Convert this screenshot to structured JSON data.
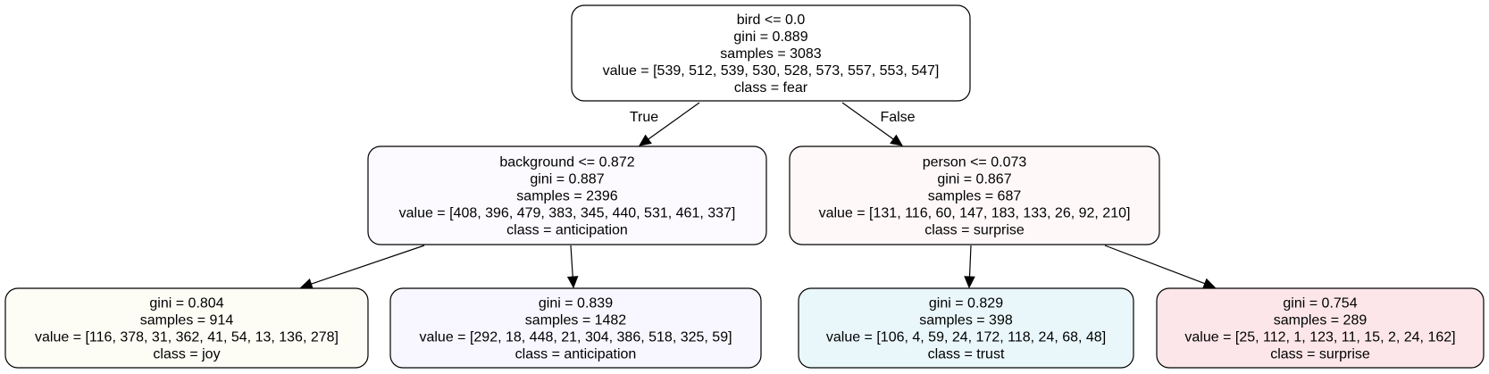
{
  "nodes": [
    {
      "id": "root",
      "fill": "#ffffff",
      "lines": [
        "bird <= 0.0",
        "gini = 0.889",
        "samples = 3083",
        "value = [539, 512, 539, 530, 528, 573, 557, 553, 547]",
        "class = fear"
      ]
    },
    {
      "id": "n1",
      "fill": "#fcfaff",
      "lines": [
        "background <= 0.872",
        "gini = 0.887",
        "samples = 2396",
        "value = [408, 396, 479, 383, 345, 440, 531, 461, 337]",
        "class = anticipation"
      ]
    },
    {
      "id": "n2",
      "fill": "#fff8f9",
      "lines": [
        "person <= 0.073",
        "gini = 0.867",
        "samples = 687",
        "value = [131, 116, 60, 147, 183, 133, 26, 92, 210]",
        "class = surprise"
      ]
    },
    {
      "id": "n3",
      "fill": "#fdfdf5",
      "lines": [
        "gini = 0.804",
        "samples = 914",
        "value = [116, 378, 31, 362, 41, 54, 13, 136, 278]",
        "class = joy"
      ]
    },
    {
      "id": "n4",
      "fill": "#f8f6fe",
      "lines": [
        "gini = 0.839",
        "samples = 1482",
        "value = [292, 18, 448, 21, 304, 386, 518, 325, 59]",
        "class = anticipation"
      ]
    },
    {
      "id": "n5",
      "fill": "#e9f7fa",
      "lines": [
        "gini = 0.829",
        "samples = 398",
        "value = [106, 4, 59, 24, 172, 118, 24, 68, 48]",
        "class = trust"
      ]
    },
    {
      "id": "n6",
      "fill": "#fce6ea",
      "lines": [
        "gini = 0.754",
        "samples = 289",
        "value = [25, 112, 1, 123, 11, 15, 2, 24, 162]",
        "class = surprise"
      ]
    }
  ],
  "edges": [
    {
      "from": "root",
      "to": "n1",
      "label": "True"
    },
    {
      "from": "root",
      "to": "n2",
      "label": "False"
    },
    {
      "from": "n1",
      "to": "n3",
      "label": ""
    },
    {
      "from": "n1",
      "to": "n4",
      "label": ""
    },
    {
      "from": "n2",
      "to": "n5",
      "label": ""
    },
    {
      "from": "n2",
      "to": "n6",
      "label": ""
    }
  ]
}
